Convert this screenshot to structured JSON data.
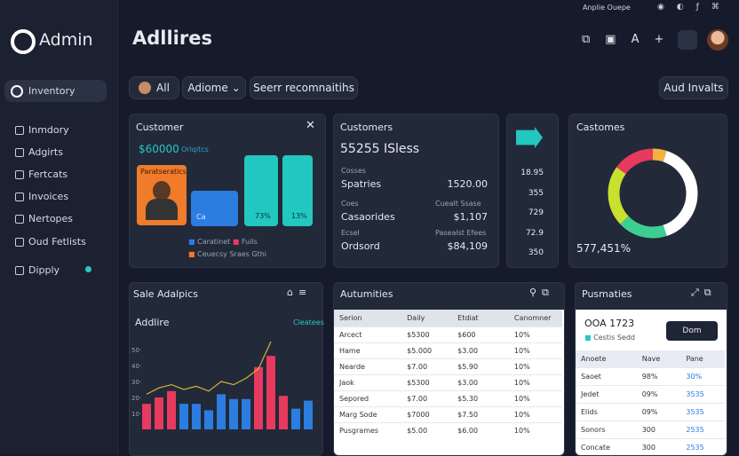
{
  "sidebar": {
    "brand": "Admin",
    "active": "Inventory",
    "nav": [
      "Inmdory",
      "Adgirts",
      "Fertcats",
      "Invoices",
      "Nertopes",
      "Oud Fetlists",
      "Dipply"
    ]
  },
  "header": {
    "title": "Adllires",
    "top_text": "Anplie Ouepe"
  },
  "filters": {
    "all": "All",
    "select": "Adiome",
    "search": "Seerr recomnaitihs",
    "action": "Aud Invalts"
  },
  "customer_card": {
    "title": "Customer",
    "amount": "$60000",
    "link": "Oriqitcs",
    "image_label": "Paratseratics",
    "blue_label": "Ca",
    "bar_labels": [
      "73%",
      "13%"
    ],
    "legend": [
      "Caratinet",
      "Fuils",
      "Ceuecsy Sraes Gthi"
    ]
  },
  "customers_card": {
    "title": "Customers",
    "headline": "55255 ISless",
    "rows": [
      {
        "caption": "Cosses",
        "label": "Spatries",
        "value": "1520.00"
      },
      {
        "caption": "Coes",
        "note": "Cuealt Ssase",
        "label": "Casaorides",
        "value": "$1,107"
      },
      {
        "caption": "Ecsel",
        "note": "Pasealst Efees",
        "label": "Ordsord",
        "value": "$84,109"
      }
    ]
  },
  "mini_card": {
    "values": [
      "18.95",
      "355",
      "729",
      "72.9",
      "350"
    ]
  },
  "donut_card": {
    "title": "Castomes",
    "value": "577,451%"
  },
  "sale_card": {
    "title": "Sale Adalpics",
    "subtitle": "Addlire",
    "link": "Cleatees"
  },
  "activities": {
    "title": "Autumities",
    "columns": [
      "Serion",
      "Daily",
      "Etdiat",
      "Canomner"
    ],
    "rows": [
      [
        "Arcect",
        "$5300",
        "$600",
        "10%"
      ],
      [
        "Hame",
        "$5.000",
        "$3.00",
        "10%"
      ],
      [
        "Nearde",
        "$7.00",
        "$5.90",
        "10%"
      ],
      [
        "Jaok",
        "$5300",
        "$3.00",
        "10%"
      ],
      [
        "Sepored",
        "$7.00",
        "$5.30",
        "10%"
      ],
      [
        "Marg Sode",
        "$7000",
        "$7.50",
        "10%"
      ],
      [
        "Pusgrames",
        "$5.00",
        "$6.00",
        "10%"
      ]
    ]
  },
  "payments": {
    "title": "Pusmaties",
    "id": "OOA 1723",
    "sub": "Cestis Sedd",
    "button": "Dom",
    "columns": [
      "Anoete",
      "Nave",
      "Pane"
    ],
    "rows": [
      [
        "Saoet",
        "98%",
        "30%"
      ],
      [
        "Jedet",
        "09%",
        "3535"
      ],
      [
        "Elids",
        "09%",
        "3535"
      ],
      [
        "Sonors",
        "300",
        "2535"
      ],
      [
        "Concate",
        "300",
        "2535"
      ]
    ]
  },
  "chart_data": [
    {
      "type": "donut",
      "values": [
        5,
        40,
        18,
        22,
        15
      ],
      "colors": [
        "#f2b33d",
        "#ffffff",
        "#3ccf91",
        "#c8e02e",
        "#e8395e"
      ]
    },
    {
      "type": "bar",
      "categories": [
        null,
        null,
        null,
        null,
        null,
        null,
        null,
        null,
        null,
        null,
        null,
        null,
        null,
        null
      ],
      "values": [
        16,
        20,
        24,
        16,
        16,
        12,
        22,
        19,
        19,
        39,
        46,
        21,
        13,
        18
      ],
      "colors": [
        "#e8395e",
        "#e8395e",
        "#e8395e",
        "#2b7de0",
        "#2b7de0",
        "#2b7de0",
        "#2b7de0",
        "#2b7de0",
        "#2b7de0",
        "#e8395e",
        "#e8395e",
        "#e8395e",
        "#2b7de0",
        "#2b7de0"
      ],
      "line_values": [
        22,
        26,
        28,
        25,
        27,
        24,
        30,
        28,
        32,
        38,
        55,
        null,
        null,
        null
      ],
      "line_color": "#d9b23a",
      "ylim": [
        0,
        60
      ],
      "yticks": [
        10,
        20,
        30,
        40,
        50
      ]
    }
  ]
}
